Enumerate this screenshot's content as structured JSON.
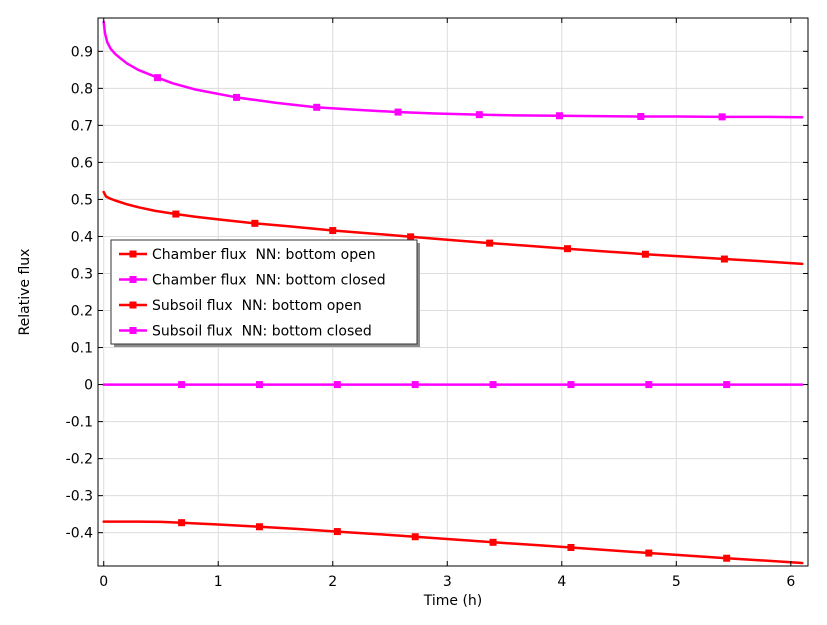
{
  "chart_data": {
    "type": "line",
    "title": "",
    "xlabel": "Time (h)",
    "ylabel": "Relative flux",
    "xlim": [
      -0.05,
      6.15
    ],
    "ylim": [
      -0.49,
      0.99
    ],
    "x_ticks": [
      0,
      1,
      2,
      3,
      4,
      5,
      6
    ],
    "y_ticks": [
      0.9,
      0.8,
      0.7,
      0.6,
      0.5,
      0.4,
      0.3,
      0.2,
      0.1,
      0,
      -0.1,
      -0.2,
      -0.3,
      -0.4
    ],
    "x_tick_labels": [
      "0",
      "1",
      "2",
      "3",
      "4",
      "5",
      "6"
    ],
    "y_tick_labels": [
      "0.9",
      "0.8",
      "0.7",
      "0.6",
      "0.5",
      "0.4",
      "0.3",
      "0.2",
      "0.1",
      "0",
      "-0.1",
      "-0.2",
      "-0.3",
      "-0.4"
    ],
    "grid": true,
    "legend_position": "center-left",
    "series": [
      {
        "name": "Chamber flux  NN: bottom open",
        "color": "#ff0000",
        "marker": "square",
        "x": [
          0,
          0.02,
          0.05,
          0.1,
          0.2,
          0.3,
          0.45,
          0.62,
          0.8,
          1.0,
          1.3,
          1.6,
          2.0,
          2.5,
          2.68,
          3.0,
          3.37,
          3.7,
          4.05,
          4.4,
          4.73,
          5.1,
          5.42,
          5.8,
          6.1
        ],
        "y": [
          0.52,
          0.508,
          0.503,
          0.497,
          0.487,
          0.479,
          0.469,
          0.461,
          0.453,
          0.446,
          0.436,
          0.428,
          0.416,
          0.404,
          0.399,
          0.391,
          0.382,
          0.375,
          0.367,
          0.359,
          0.352,
          0.345,
          0.339,
          0.332,
          0.326
        ],
        "marker_x": [
          0.63,
          1.32,
          2.0,
          2.68,
          3.37,
          4.05,
          4.73,
          5.42
        ]
      },
      {
        "name": "Chamber flux  NN: bottom closed",
        "color": "#ff00ff",
        "marker": "square",
        "x": [
          0,
          0.01,
          0.03,
          0.06,
          0.1,
          0.15,
          0.2,
          0.3,
          0.46,
          0.6,
          0.8,
          1.15,
          1.5,
          1.85,
          2.2,
          2.56,
          2.9,
          3.27,
          3.6,
          3.98,
          4.3,
          4.69,
          5.0,
          5.4,
          5.8,
          6.1
        ],
        "y": [
          0.98,
          0.95,
          0.925,
          0.907,
          0.893,
          0.88,
          0.868,
          0.85,
          0.83,
          0.814,
          0.797,
          0.776,
          0.761,
          0.749,
          0.742,
          0.736,
          0.732,
          0.729,
          0.727,
          0.726,
          0.725,
          0.724,
          0.724,
          0.723,
          0.723,
          0.722
        ],
        "marker_x": [
          0.47,
          1.16,
          1.86,
          2.57,
          3.28,
          3.98,
          4.69,
          5.4
        ]
      },
      {
        "name": "Subsoil flux  NN: bottom open",
        "color": "#ff0000",
        "marker": "square",
        "x": [
          0,
          0.3,
          0.5,
          0.68,
          1.0,
          1.36,
          1.7,
          2.04,
          2.4,
          2.72,
          3.0,
          3.4,
          3.8,
          4.08,
          4.4,
          4.76,
          5.1,
          5.44,
          5.8,
          6.1
        ],
        "y": [
          -0.37,
          -0.37,
          -0.371,
          -0.373,
          -0.378,
          -0.384,
          -0.39,
          -0.397,
          -0.404,
          -0.411,
          -0.417,
          -0.426,
          -0.434,
          -0.44,
          -0.447,
          -0.455,
          -0.462,
          -0.469,
          -0.476,
          -0.482
        ],
        "marker_x": [
          0.68,
          1.36,
          2.04,
          2.72,
          3.4,
          4.08,
          4.76,
          5.44
        ]
      },
      {
        "name": "Subsoil flux  NN: bottom closed",
        "color": "#ff00ff",
        "marker": "square",
        "x": [
          0,
          6.1
        ],
        "y": [
          0,
          0
        ],
        "marker_x": [
          0.68,
          1.36,
          2.04,
          2.72,
          3.4,
          4.08,
          4.76,
          5.44
        ]
      }
    ]
  }
}
